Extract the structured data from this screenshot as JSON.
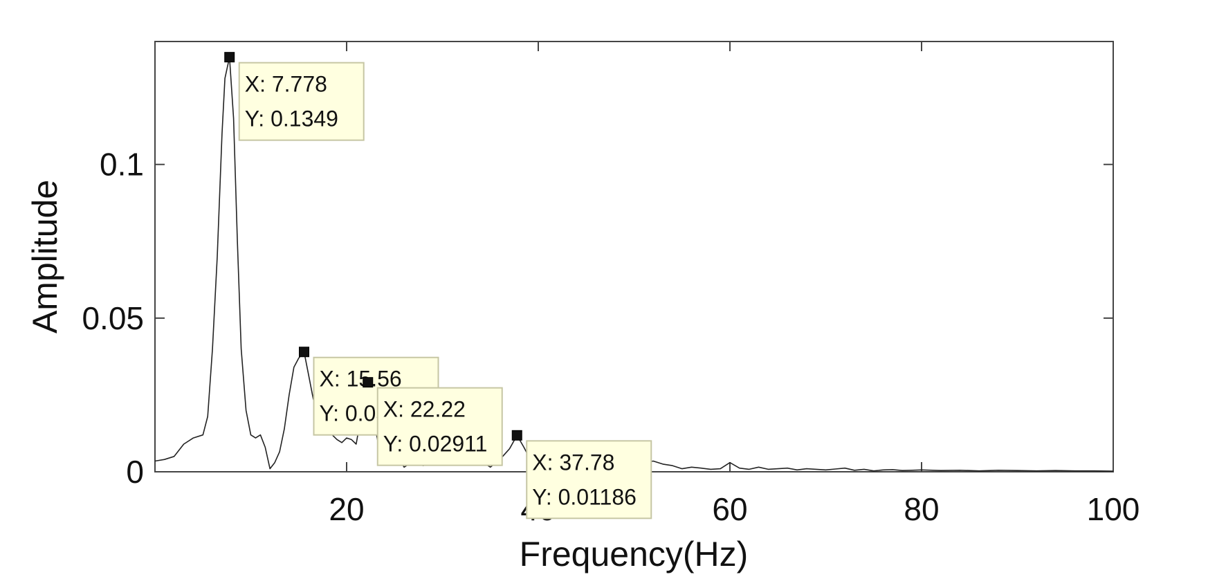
{
  "chart_data": {
    "type": "line",
    "title": "",
    "xlabel": "Frequency(Hz)",
    "ylabel": "Amplitude",
    "xlim": [
      0,
      100
    ],
    "ylim": [
      0,
      0.14
    ],
    "grid": false,
    "xticks": [
      20,
      40,
      60,
      80,
      100
    ],
    "yticks": [
      0,
      0.05,
      0.1
    ],
    "xtick_labels": [
      "20",
      "40",
      "60",
      "80",
      "100"
    ],
    "ytick_labels": [
      "0",
      "0.05",
      "0.1"
    ],
    "line_color": "#222222",
    "datatip_color": "#ffffe0",
    "series": [
      {
        "x": [
          0,
          1,
          2,
          3,
          4,
          5,
          5.5,
          6,
          6.5,
          7,
          7.3,
          7.778,
          8.2,
          8.6,
          9,
          9.5,
          10,
          10.5,
          11,
          11.5,
          12,
          12.5,
          13,
          13.5,
          14,
          14.5,
          15,
          15.56,
          16,
          16.5,
          17,
          17.5,
          18,
          18.5,
          19,
          19.5,
          20,
          20.5,
          21,
          21.5,
          22.22,
          23,
          23.5,
          24,
          24.5,
          25,
          26,
          27,
          28,
          29,
          30,
          31,
          32,
          33,
          34,
          35,
          36,
          37,
          37.78,
          38.5,
          39,
          40,
          41,
          42,
          43,
          44,
          45,
          46,
          47,
          48,
          49,
          50,
          51,
          52,
          53,
          54,
          55,
          56,
          57,
          58,
          59,
          60,
          61,
          62,
          63,
          64,
          65,
          66,
          67,
          68,
          69,
          70,
          71,
          72,
          73,
          74,
          75,
          76,
          77,
          78,
          79,
          80,
          82,
          84,
          86,
          88,
          90,
          92,
          94,
          96,
          98,
          100
        ],
        "y": [
          0.0035,
          0.004,
          0.005,
          0.009,
          0.011,
          0.012,
          0.018,
          0.04,
          0.07,
          0.11,
          0.128,
          0.1349,
          0.115,
          0.075,
          0.04,
          0.02,
          0.012,
          0.011,
          0.012,
          0.008,
          0.001,
          0.003,
          0.0065,
          0.014,
          0.025,
          0.034,
          0.037,
          0.039,
          0.032,
          0.024,
          0.018,
          0.016,
          0.014,
          0.012,
          0.0105,
          0.0095,
          0.011,
          0.0105,
          0.009,
          0.018,
          0.02911,
          0.014,
          0.006,
          0.0055,
          0.007,
          0.0065,
          0.0015,
          0.0035,
          0.002,
          0.004,
          0.0055,
          0.005,
          0.003,
          0.0025,
          0.0035,
          0.0015,
          0.004,
          0.0075,
          0.01186,
          0.008,
          0.005,
          0.002,
          0.0015,
          0.0015,
          0.002,
          0.0045,
          0.0025,
          0.001,
          0.0005,
          0.001,
          0.0015,
          0.002,
          0.003,
          0.0035,
          0.0025,
          0.002,
          0.001,
          0.0015,
          0.0012,
          0.0008,
          0.001,
          0.003,
          0.0012,
          0.0008,
          0.0015,
          0.0008,
          0.001,
          0.0012,
          0.0006,
          0.001,
          0.0008,
          0.0006,
          0.0009,
          0.0012,
          0.0005,
          0.0008,
          0.0003,
          0.0006,
          0.0007,
          0.0004,
          0.0005,
          0.0006,
          0.0004,
          0.0005,
          0.0003,
          0.0005,
          0.0004,
          0.0003,
          0.0004,
          0.0003,
          0.0003,
          0.0002
        ]
      }
    ],
    "datatips": [
      {
        "x": 7.778,
        "y": 0.1349,
        "x_text": "X: 7.778",
        "y_text": "Y: 0.1349"
      },
      {
        "x": 15.56,
        "y": 0.039,
        "x_text": "X: 15.56",
        "y_text": "Y: 0.039"
      },
      {
        "x": 22.22,
        "y": 0.02911,
        "x_text": "X: 22.22",
        "y_text": "Y: 0.02911"
      },
      {
        "x": 37.78,
        "y": 0.01186,
        "x_text": "X: 37.78",
        "y_text": "Y: 0.01186"
      }
    ]
  }
}
